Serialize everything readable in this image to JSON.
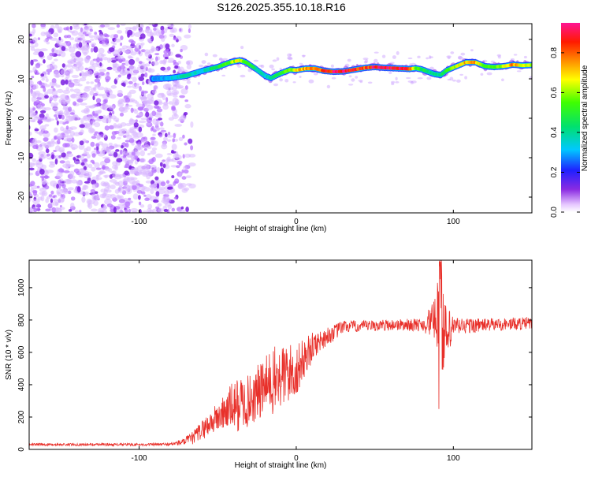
{
  "title": "S126.2025.355.10.18.R16",
  "chart_data": [
    {
      "type": "heatmap",
      "xlabel": "Height of straight line (km)",
      "ylabel": "Frequency (Hz)",
      "xlim": [
        -170,
        150
      ],
      "ylim": [
        -24,
        24
      ],
      "x_ticks": [
        -100,
        0,
        100
      ],
      "y_ticks": [
        -20,
        -10,
        0,
        10,
        20
      ],
      "colorbar": {
        "label": "Normalized spectral amplitude",
        "range": [
          0,
          0.95
        ],
        "ticks": [
          0.0,
          0.2,
          0.4,
          0.6,
          0.8
        ]
      },
      "noise_region_x": [
        -170,
        -78
      ],
      "track_start_x": -92,
      "track": {
        "x": [
          -92,
          -80,
          -70,
          -60,
          -50,
          -42,
          -36,
          -32,
          -26,
          -20,
          -16,
          -10,
          -4,
          0,
          6,
          12,
          18,
          24,
          30,
          38,
          44,
          50,
          56,
          62,
          68,
          72,
          76,
          80,
          84,
          88,
          92,
          96,
          102,
          108,
          114,
          120,
          126,
          132,
          138,
          144,
          150
        ],
        "freq": [
          10,
          10.2,
          10.8,
          12,
          13,
          14.2,
          14.7,
          14.2,
          12.6,
          10.8,
          10.2,
          11.4,
          12.3,
          12.2,
          12.6,
          12.6,
          12.0,
          11.8,
          11.9,
          12.4,
          12.8,
          13.0,
          12.8,
          12.7,
          12.6,
          12.5,
          12.7,
          12.4,
          11.8,
          11.2,
          11.0,
          12.2,
          13.2,
          14.2,
          14.2,
          13.2,
          13.0,
          13.2,
          13.6,
          13.4,
          13.5
        ],
        "amplitude": [
          0.25,
          0.35,
          0.4,
          0.35,
          0.5,
          0.6,
          0.7,
          0.55,
          0.45,
          0.35,
          0.4,
          0.55,
          0.6,
          0.7,
          0.8,
          0.75,
          0.85,
          0.95,
          0.95,
          0.9,
          0.85,
          0.95,
          0.95,
          0.95,
          0.95,
          0.9,
          0.6,
          0.5,
          0.45,
          0.4,
          0.45,
          0.55,
          0.65,
          0.75,
          0.8,
          0.6,
          0.55,
          0.7,
          0.8,
          0.7,
          0.65
        ]
      }
    },
    {
      "type": "line",
      "xlabel": "Height of straight line (km)",
      "ylabel": "SNR (10 * v/v)",
      "xlim": [
        -170,
        150
      ],
      "ylim": [
        0,
        1170
      ],
      "x_ticks": [
        -100,
        0,
        100
      ],
      "y_ticks": [
        0,
        200,
        400,
        600,
        800,
        1000
      ],
      "series": [
        {
          "name": "SNR",
          "color": "#e8302a",
          "x": [
            -170,
            -150,
            -130,
            -110,
            -90,
            -80,
            -72,
            -66,
            -60,
            -54,
            -48,
            -42,
            -36,
            -30,
            -24,
            -18,
            -12,
            -6,
            0,
            6,
            12,
            18,
            24,
            30,
            40,
            60,
            80,
            88,
            90,
            92,
            94,
            100,
            120,
            150
          ],
          "y": [
            30,
            30,
            30,
            30,
            30,
            32,
            45,
            70,
            120,
            170,
            210,
            260,
            280,
            300,
            350,
            400,
            430,
            470,
            480,
            580,
            650,
            690,
            720,
            760,
            760,
            770,
            770,
            800,
            900,
            1160,
            650,
            760,
            770,
            780
          ],
          "noise_amplitude": [
            8,
            8,
            8,
            8,
            8,
            10,
            20,
            40,
            60,
            80,
            100,
            140,
            180,
            160,
            180,
            200,
            220,
            200,
            160,
            120,
            80,
            60,
            50,
            40,
            35,
            35,
            40,
            120,
            300,
            500,
            280,
            60,
            40,
            40
          ],
          "spikes": [
            {
              "x": 90.9,
              "y": 250
            },
            {
              "x": 91.9,
              "y": 1160
            },
            {
              "x": 92.8,
              "y": 495
            }
          ]
        }
      ]
    }
  ]
}
